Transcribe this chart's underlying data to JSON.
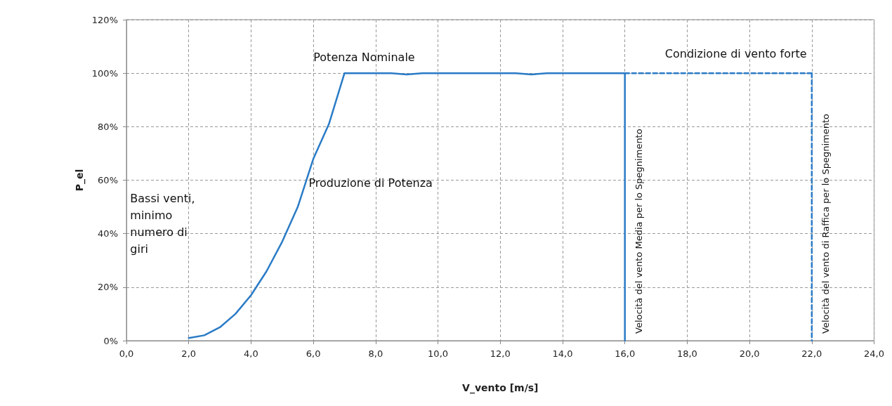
{
  "chart_data": {
    "type": "line",
    "xlabel": "V_vento [m/s]",
    "ylabel": "P_el",
    "xlim": [
      0,
      24
    ],
    "xticks": [
      {
        "value": 0,
        "label": "0,0"
      },
      {
        "value": 2,
        "label": "2,0"
      },
      {
        "value": 4,
        "label": "4,0"
      },
      {
        "value": 6,
        "label": "6,0"
      },
      {
        "value": 8,
        "label": "8,0"
      },
      {
        "value": 10,
        "label": "10,0"
      },
      {
        "value": 12,
        "label": "12,0"
      },
      {
        "value": 14,
        "label": "14,0"
      },
      {
        "value": 16,
        "label": "16,0"
      },
      {
        "value": 18,
        "label": "18,0"
      },
      {
        "value": 20,
        "label": "20,0"
      },
      {
        "value": 22,
        "label": "22,0"
      },
      {
        "value": 24,
        "label": "24,0"
      }
    ],
    "ylim": [
      0,
      120
    ],
    "yticks": [
      {
        "value": 0,
        "label": "0%"
      },
      {
        "value": 20,
        "label": "20%"
      },
      {
        "value": 40,
        "label": "40%"
      },
      {
        "value": 60,
        "label": "60%"
      },
      {
        "value": 80,
        "label": "80%"
      },
      {
        "value": 100,
        "label": "100%"
      },
      {
        "value": 120,
        "label": "120%"
      }
    ],
    "grid": true,
    "legend": false,
    "marker": "none",
    "series": [
      {
        "color": "#2a7bc6",
        "line_style": "solid",
        "x": [
          2,
          2.5,
          3,
          3.5,
          4,
          4.5,
          5,
          5.5,
          6,
          6.5,
          7,
          8,
          8.5,
          9,
          9.5,
          10,
          11,
          12,
          12.5,
          13,
          13.5,
          14,
          15,
          16
        ],
        "values": [
          1,
          2,
          5,
          10,
          17,
          26,
          37,
          50,
          68,
          81,
          100,
          100,
          100,
          99.5,
          100,
          100,
          100,
          100,
          100,
          99.5,
          100,
          100,
          100,
          100
        ]
      },
      {
        "name": "Velocità del vento Media per lo Spegnimento",
        "color": "#2a7bc6",
        "line_style": "solid",
        "x": [
          16,
          16
        ],
        "values": [
          0,
          100
        ]
      },
      {
        "color": "#2a7bc6",
        "line_style": "dashed",
        "x": [
          16,
          22
        ],
        "values": [
          100,
          100
        ]
      },
      {
        "name": "Velocità del vento di Raffica per lo Spegnimento",
        "color": "#2a7bc6",
        "line_style": "dashed",
        "x": [
          22,
          22
        ],
        "values": [
          100,
          0
        ]
      }
    ],
    "annotations": [
      "Potenza Nominale",
      "Condizione di vento forte",
      {
        "text": "Produzione di Potenza",
        "x": 5.85,
        "y": 62
      },
      "Bassi venti,\nminimo\nnumero di\ngiri"
    ]
  }
}
